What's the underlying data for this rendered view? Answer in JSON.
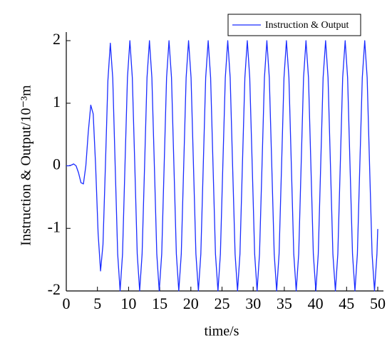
{
  "chart_data": {
    "type": "line",
    "x_label": "time/s",
    "y_label": "Instruction & Output/10⁻³m",
    "xlim": [
      0,
      50
    ],
    "ylim": [
      -2,
      2
    ],
    "xticks": [
      0,
      5,
      10,
      15,
      20,
      25,
      30,
      35,
      40,
      45,
      50
    ],
    "yticks": [
      -2,
      -1,
      0,
      1,
      2
    ],
    "legend": "top-right",
    "x": [
      0,
      0.39,
      0.79,
      1.18,
      1.57,
      1.96,
      2.36,
      2.75,
      3.14,
      3.53,
      3.93,
      4.32,
      4.71,
      5.11,
      5.5,
      5.89,
      6.28,
      6.68,
      7.07,
      7.46,
      7.85,
      8.25,
      8.64,
      9.03,
      9.42,
      9.82,
      10.21,
      10.6,
      11.0,
      11.39,
      11.78,
      12.17,
      12.57,
      12.96,
      13.35,
      13.74,
      14.14,
      14.53,
      14.92,
      15.32,
      15.71,
      16.1,
      16.49,
      16.89,
      17.28,
      17.67,
      18.06,
      18.46,
      18.85,
      19.24,
      19.63,
      20.03,
      20.42,
      20.81,
      21.21,
      21.6,
      21.99,
      22.38,
      22.78,
      23.17,
      23.56,
      23.95,
      24.35,
      24.74,
      25.13,
      25.53,
      25.92,
      26.31,
      26.7,
      27.1,
      27.49,
      27.88,
      28.27,
      28.67,
      29.06,
      29.45,
      29.85,
      30.24,
      30.63,
      31.02,
      31.42,
      31.81,
      32.2,
      32.59,
      32.99,
      33.38,
      33.77,
      34.16,
      34.56,
      34.95,
      35.34,
      35.74,
      36.13,
      36.52,
      36.91,
      37.31,
      37.7,
      38.09,
      38.48,
      38.88,
      39.27,
      39.66,
      40.06,
      40.45,
      40.84,
      41.23,
      41.63,
      42.02,
      42.41,
      42.8,
      43.2,
      43.59,
      43.98,
      44.37,
      44.77,
      45.16,
      45.55,
      45.95,
      46.34,
      46.73,
      47.12,
      47.52,
      47.91,
      48.3,
      48.69,
      49.09,
      49.48,
      49.87,
      50
    ],
    "series": [
      {
        "name": "Instruction & Output",
        "color": "#1a2cff",
        "values": [
          0,
          0,
          0.01,
          0.03,
          0,
          -0.11,
          -0.27,
          -0.29,
          0,
          0.54,
          0.97,
          0.83,
          0,
          -1.08,
          -1.68,
          -1.26,
          0,
          1.36,
          1.96,
          1.4,
          0,
          -1.41,
          -2,
          -1.41,
          0,
          1.41,
          2,
          1.41,
          0,
          -1.41,
          -2,
          -1.41,
          0,
          1.41,
          2,
          1.41,
          0,
          -1.41,
          -2,
          -1.41,
          0,
          1.41,
          2,
          1.41,
          0,
          -1.41,
          -2,
          -1.41,
          0,
          1.41,
          2,
          1.41,
          0,
          -1.41,
          -2,
          -1.41,
          0,
          1.41,
          2,
          1.41,
          0,
          -1.41,
          -2,
          -1.41,
          0,
          1.41,
          2,
          1.41,
          0,
          -1.41,
          -2,
          -1.41,
          0,
          1.41,
          2,
          1.41,
          0,
          -1.41,
          -2,
          -1.41,
          0,
          1.41,
          2,
          1.41,
          0,
          -1.41,
          -2,
          -1.41,
          0,
          1.41,
          2,
          1.41,
          0,
          -1.41,
          -2,
          -1.41,
          0,
          1.41,
          2,
          1.41,
          0,
          -1.41,
          -2,
          -1.41,
          0,
          1.41,
          2,
          1.41,
          0,
          -1.41,
          -2,
          -1.41,
          0,
          1.41,
          2,
          1.41,
          0,
          -1.41,
          -2,
          -1.41,
          0,
          1.41,
          2,
          1.41,
          0,
          -1.41,
          -2,
          -1.41,
          -1.01
        ]
      }
    ]
  }
}
